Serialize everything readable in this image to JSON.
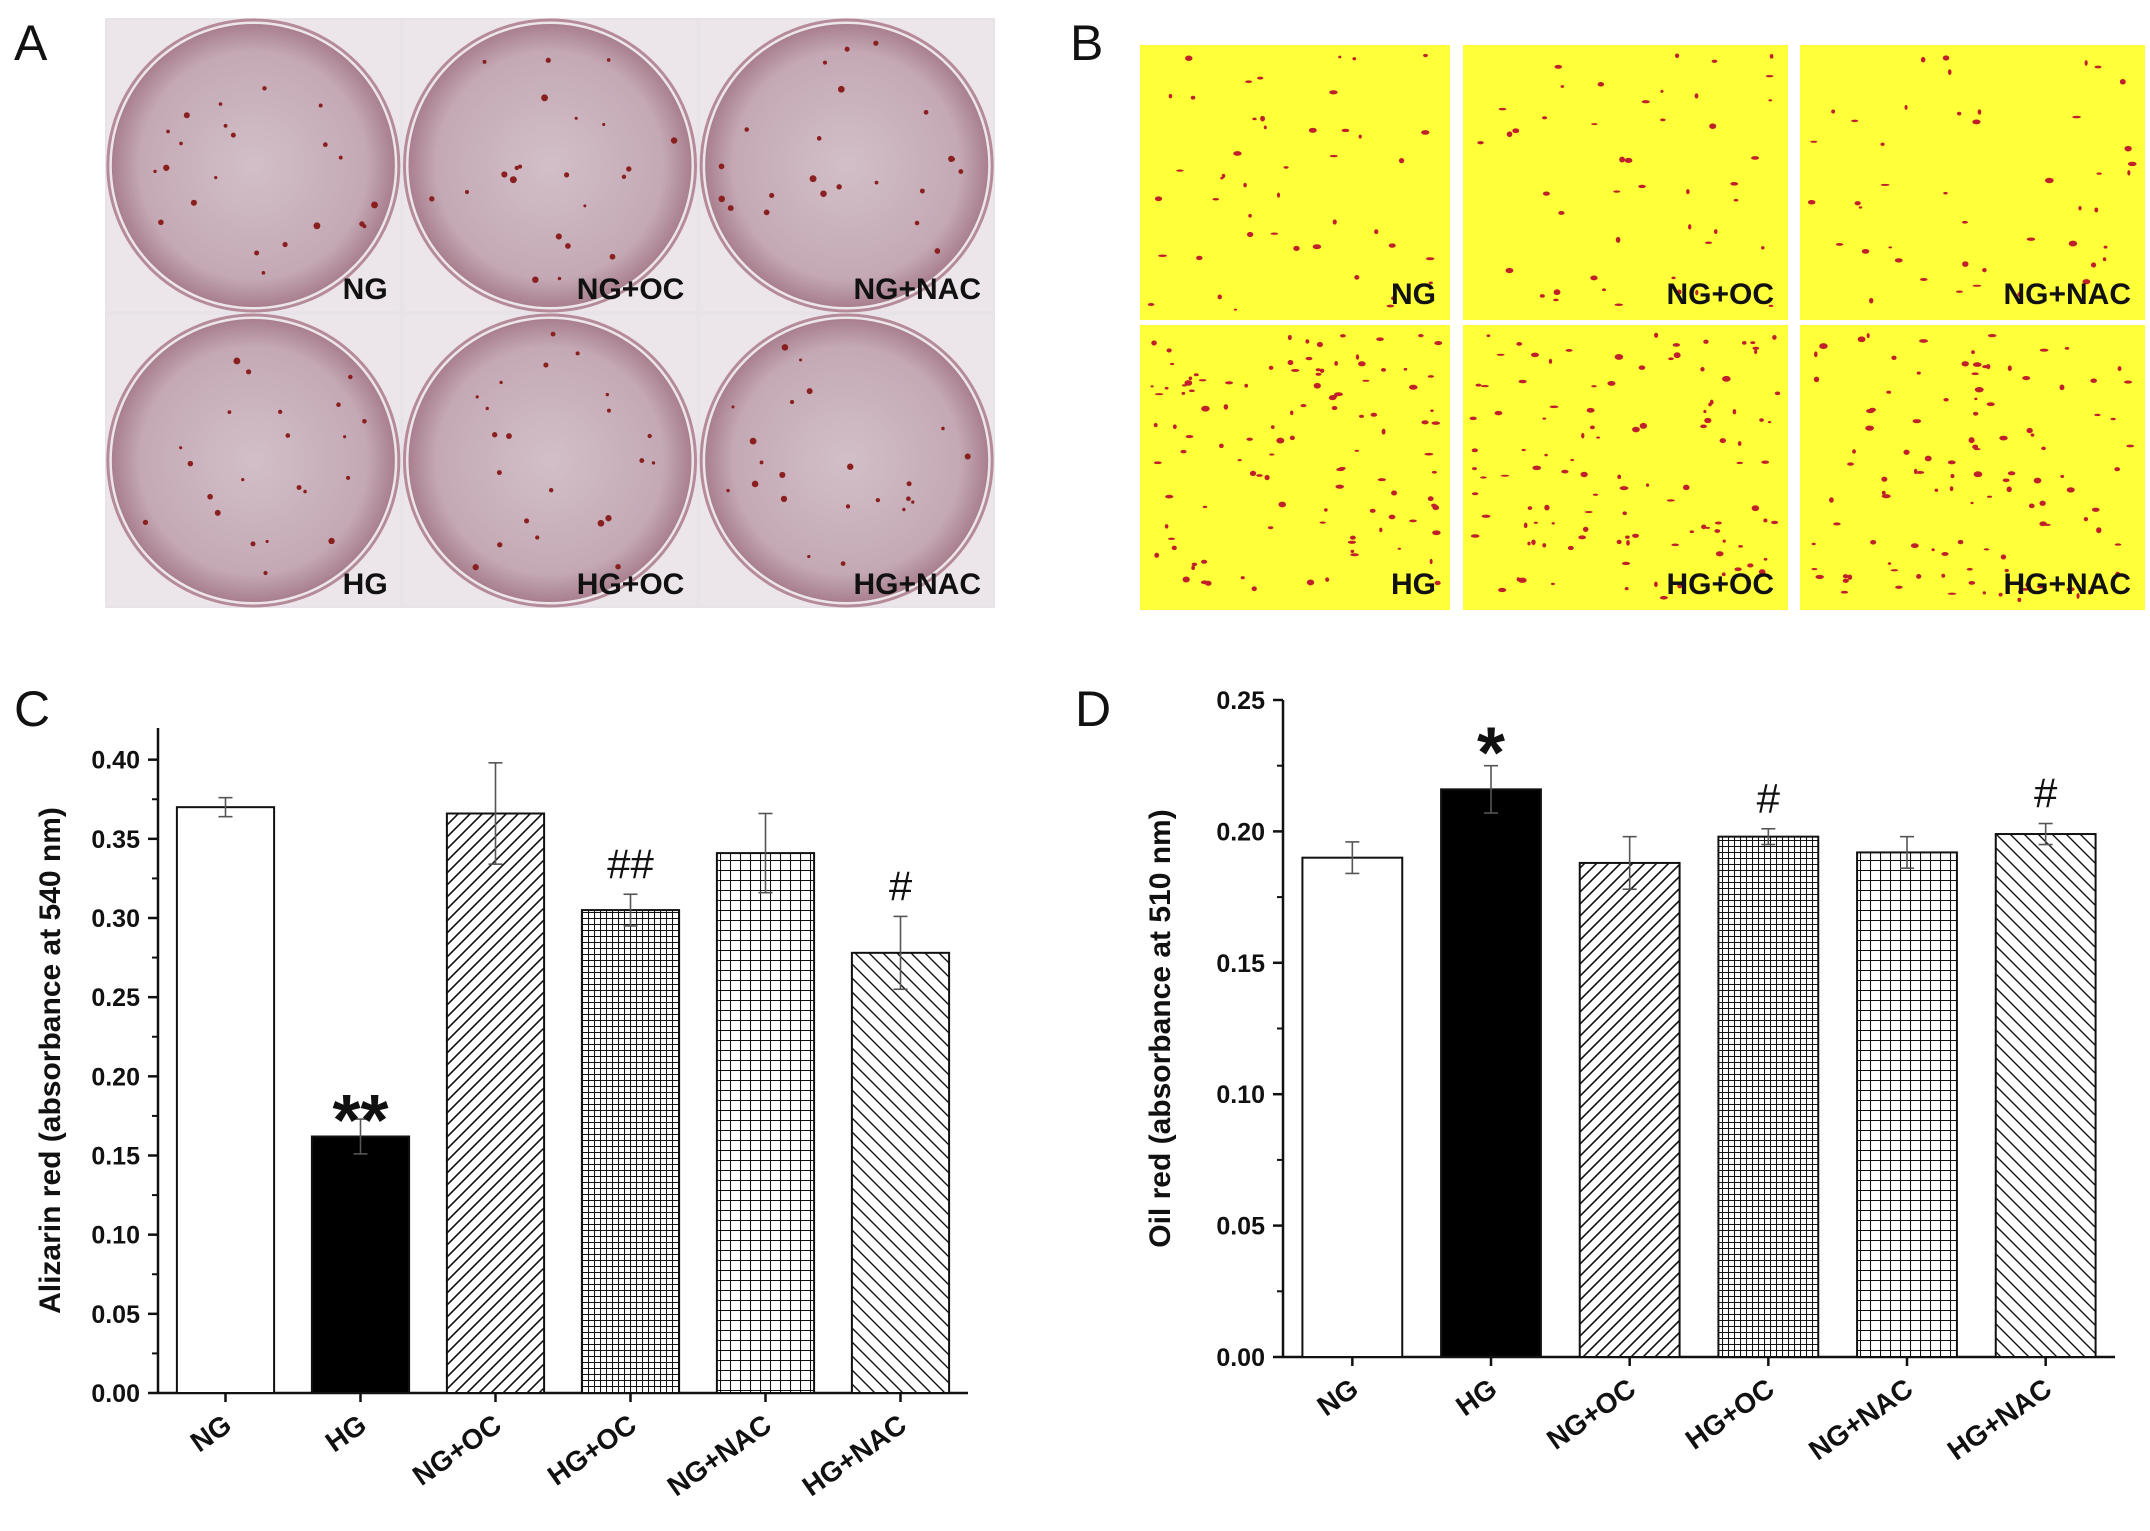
{
  "panels": {
    "A": {
      "letter": "A",
      "wells": [
        {
          "label": "NG"
        },
        {
          "label": "NG+OC"
        },
        {
          "label": "NG+NAC"
        },
        {
          "label": "HG"
        },
        {
          "label": "HG+OC"
        },
        {
          "label": "HG+NAC"
        }
      ]
    },
    "B": {
      "letter": "B",
      "micrographs": [
        {
          "label": "NG"
        },
        {
          "label": "NG+OC"
        },
        {
          "label": "NG+NAC"
        },
        {
          "label": "HG"
        },
        {
          "label": "HG+OC"
        },
        {
          "label": "HG+NAC"
        }
      ]
    }
  },
  "colors": {
    "plate_background": "#e8e3e8",
    "well_fill": "#cdb6c0",
    "stain_dot": "#8a1f1f",
    "micro_background": "#ffff3a",
    "micro_stain": "#c0202a"
  },
  "chart_data": [
    {
      "panel": "C",
      "type": "bar",
      "categories": [
        "NG",
        "HG",
        "NG+OC",
        "HG+OC",
        "NG+NAC",
        "HG+NAC"
      ],
      "values": [
        0.37,
        0.162,
        0.366,
        0.305,
        0.341,
        0.278
      ],
      "errors": [
        0.006,
        0.011,
        0.032,
        0.01,
        0.025,
        0.023
      ],
      "fills": [
        "white",
        "black",
        "diag-right",
        "fine-grid",
        "grid",
        "diag-left"
      ],
      "annotations": [
        "",
        "**",
        "",
        "##",
        "",
        "#"
      ],
      "ylabel": "Alizarin red (absorbance at 540 nm)",
      "ylim": [
        0,
        0.42
      ],
      "yticks": [
        "0.00",
        "0.05",
        "0.10",
        "0.15",
        "0.20",
        "0.25",
        "0.30",
        "0.35",
        "0.40"
      ],
      "ytick_values": [
        0,
        0.05,
        0.1,
        0.15,
        0.2,
        0.25,
        0.3,
        0.35,
        0.4
      ]
    },
    {
      "panel": "D",
      "type": "bar",
      "categories": [
        "NG",
        "HG",
        "NG+OC",
        "HG+OC",
        "NG+NAC",
        "HG+NAC"
      ],
      "values": [
        0.19,
        0.216,
        0.188,
        0.198,
        0.192,
        0.199
      ],
      "errors": [
        0.006,
        0.009,
        0.01,
        0.003,
        0.006,
        0.004
      ],
      "fills": [
        "white",
        "black",
        "diag-right",
        "fine-grid",
        "grid",
        "diag-left"
      ],
      "annotations": [
        "",
        "*",
        "",
        "#",
        "",
        "#"
      ],
      "ylabel": "Oil red  (absorbance at 510 nm)",
      "ylim": [
        0,
        0.25
      ],
      "yticks": [
        "0.00",
        "0.05",
        "0.10",
        "0.15",
        "0.20",
        "0.25"
      ],
      "ytick_values": [
        0,
        0.05,
        0.1,
        0.15,
        0.2,
        0.25
      ]
    }
  ]
}
